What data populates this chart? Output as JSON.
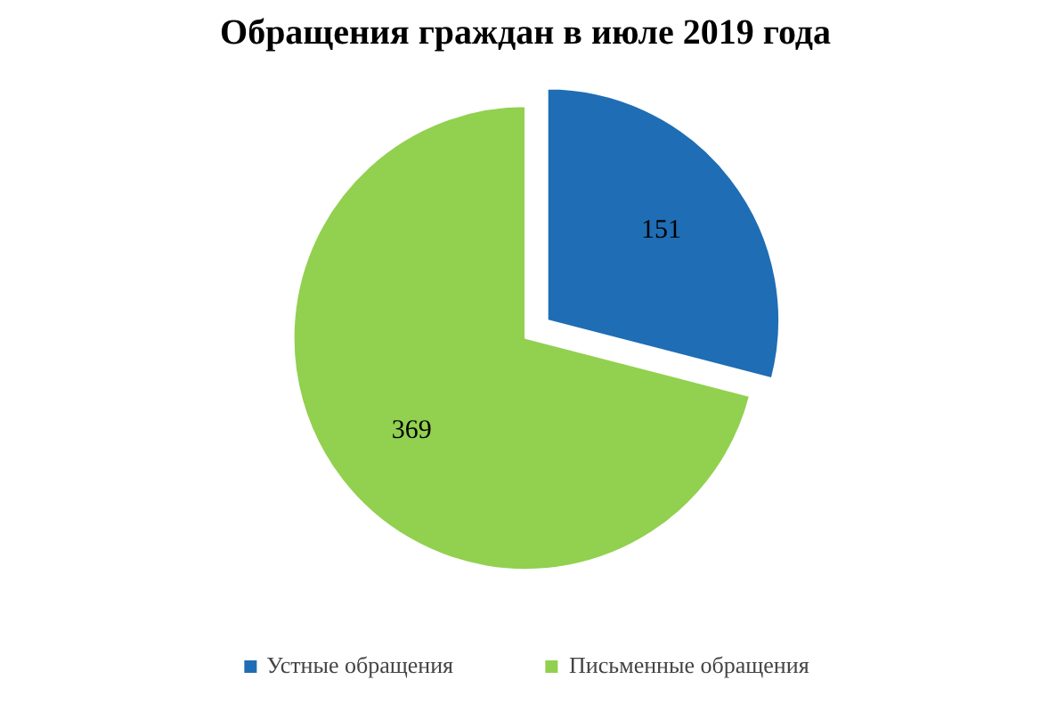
{
  "chart_data": {
    "type": "pie",
    "title": "Обращения граждан в июле 2019 года",
    "categories": [
      "Устные обращения",
      "Письменные обращения"
    ],
    "values": [
      151,
      369
    ],
    "colors": [
      "#1f6db5",
      "#92d050"
    ],
    "data_labels": true,
    "legend": "bottom"
  }
}
